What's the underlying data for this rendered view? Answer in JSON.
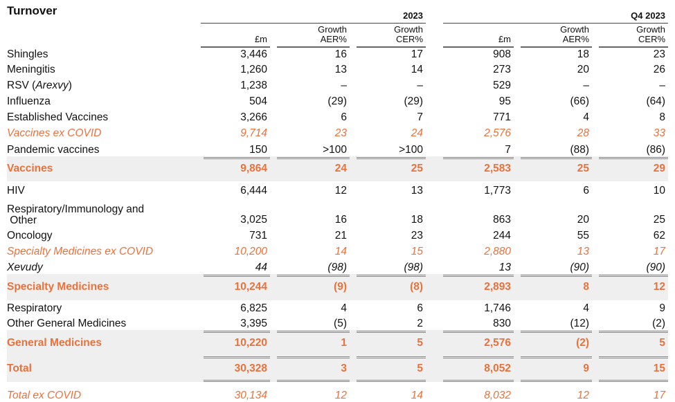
{
  "title": "Turnover",
  "periods": [
    "2023",
    "Q4 2023"
  ],
  "col_headers": [
    {
      "line1": "",
      "line2": "£m"
    },
    {
      "line1": "Growth",
      "line2": "AER%"
    },
    {
      "line1": "Growth",
      "line2": "CER%"
    },
    {
      "line1": "",
      "line2": "£m"
    },
    {
      "line1": "Growth",
      "line2": "AER%"
    },
    {
      "line1": "Growth",
      "line2": "CER%"
    }
  ],
  "rows": [
    {
      "label": "Shingles",
      "values": [
        "3,446",
        "16",
        "17",
        "908",
        "18",
        "23"
      ]
    },
    {
      "label": "Meningitis",
      "values": [
        "1,260",
        "13",
        "14",
        "273",
        "20",
        "26"
      ]
    },
    {
      "label": "RSV (",
      "label_italic": "Arexvy",
      "label_end": ")",
      "values": [
        "1,238",
        "–",
        "–",
        "529",
        "–",
        "–"
      ]
    },
    {
      "label": "Influenza",
      "values": [
        "504",
        "(29)",
        "(29)",
        "95",
        "(66)",
        "(64)"
      ]
    },
    {
      "label": "Established Vaccines",
      "values": [
        "3,266",
        "6",
        "7",
        "771",
        "4",
        "8"
      ]
    },
    {
      "label": "Vaccines ex COVID",
      "values": [
        "9,714",
        "23",
        "24",
        "2,576",
        "28",
        "33"
      ]
    },
    {
      "label": "Pandemic vaccines",
      "values": [
        "150",
        ">100",
        ">100",
        "7",
        "(88)",
        "(86)"
      ]
    },
    {
      "label": "Vaccines",
      "values": [
        "9,864",
        "24",
        "25",
        "2,583",
        "25",
        "29"
      ]
    },
    {
      "label": "HIV",
      "values": [
        "6,444",
        "12",
        "13",
        "1,773",
        "6",
        "10"
      ]
    },
    {
      "label": "Respiratory/Immunology and",
      "label2": " Other",
      "values": [
        "3,025",
        "16",
        "18",
        "863",
        "20",
        "25"
      ]
    },
    {
      "label": "Oncology",
      "values": [
        "731",
        "21",
        "23",
        "244",
        "55",
        "62"
      ]
    },
    {
      "label": "Specialty Medicines ex COVID",
      "values": [
        "10,200",
        "14",
        "15",
        "2,880",
        "13",
        "17"
      ]
    },
    {
      "label": "Xevudy",
      "values": [
        "44",
        "(98)",
        "(98)",
        "13",
        "(90)",
        "(90)"
      ]
    },
    {
      "label": "Specialty Medicines",
      "values": [
        "10,244",
        "(9)",
        "(8)",
        "2,893",
        "8",
        "12"
      ]
    },
    {
      "label": "Respiratory",
      "values": [
        "6,825",
        "4",
        "6",
        "1,746",
        "4",
        "9"
      ]
    },
    {
      "label": "Other General Medicines",
      "values": [
        "3,395",
        "(5)",
        "2",
        "830",
        "(12)",
        "(2)"
      ]
    },
    {
      "label": "General Medicines",
      "values": [
        "10,220",
        "1",
        "5",
        "2,576",
        "(2)",
        "5"
      ]
    },
    {
      "label": "Total",
      "values": [
        "30,328",
        "3",
        "5",
        "8,052",
        "9",
        "15"
      ]
    },
    {
      "label": "Total ex COVID",
      "values": [
        "30,134",
        "12",
        "14",
        "8,032",
        "12",
        "17"
      ]
    }
  ],
  "colors": {
    "accent": "#e8723c",
    "band": "#efefef",
    "text": "#111111"
  }
}
